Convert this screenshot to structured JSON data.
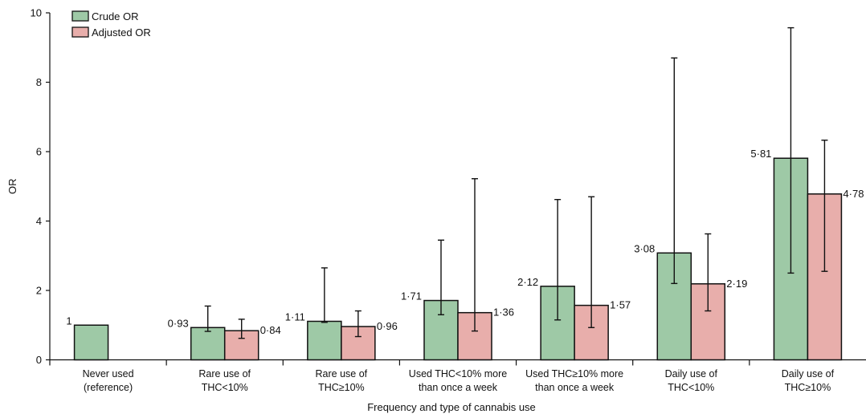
{
  "chart_data": {
    "type": "bar",
    "title": "",
    "xlabel": "Frequency and type of cannabis use",
    "ylabel": "OR",
    "ylim": [
      0,
      10
    ],
    "yticks": [
      0,
      2,
      4,
      6,
      8,
      10
    ],
    "grid": false,
    "legend_position": "top-left",
    "categories": [
      [
        "Never used",
        "(reference)"
      ],
      [
        "Rare use of",
        "THC<10%"
      ],
      [
        "Rare use of",
        "THC≥10%"
      ],
      [
        "Used THC<10% more",
        "than once a week"
      ],
      [
        "Used THC≥10% more",
        "than once a week"
      ],
      [
        "Daily use of",
        "THC<10%"
      ],
      [
        "Daily use of",
        "THC≥10%"
      ]
    ],
    "series": [
      {
        "name": "Crude OR",
        "color": "#9ec9a6",
        "values": [
          1,
          0.93,
          1.11,
          1.71,
          2.12,
          3.08,
          5.81
        ],
        "labels": [
          "1",
          "0·93",
          "1·11",
          "1·71",
          "2·12",
          "3·08",
          "5·81"
        ],
        "ci_low": [
          null,
          0.82,
          1.08,
          1.3,
          1.15,
          2.2,
          2.5
        ],
        "ci_high": [
          null,
          1.55,
          2.65,
          3.45,
          4.62,
          8.7,
          9.57
        ]
      },
      {
        "name": "Adjusted OR",
        "color": "#e8aeab",
        "values": [
          null,
          0.84,
          0.96,
          1.36,
          1.57,
          2.19,
          4.78
        ],
        "labels": [
          "",
          "0·84",
          "0·96",
          "1·36",
          "1·57",
          "2·19",
          "4·78"
        ],
        "ci_low": [
          null,
          0.62,
          0.67,
          0.83,
          0.93,
          1.41,
          2.55
        ],
        "ci_high": [
          null,
          1.17,
          1.41,
          5.22,
          4.7,
          3.63,
          6.33
        ]
      }
    ]
  }
}
